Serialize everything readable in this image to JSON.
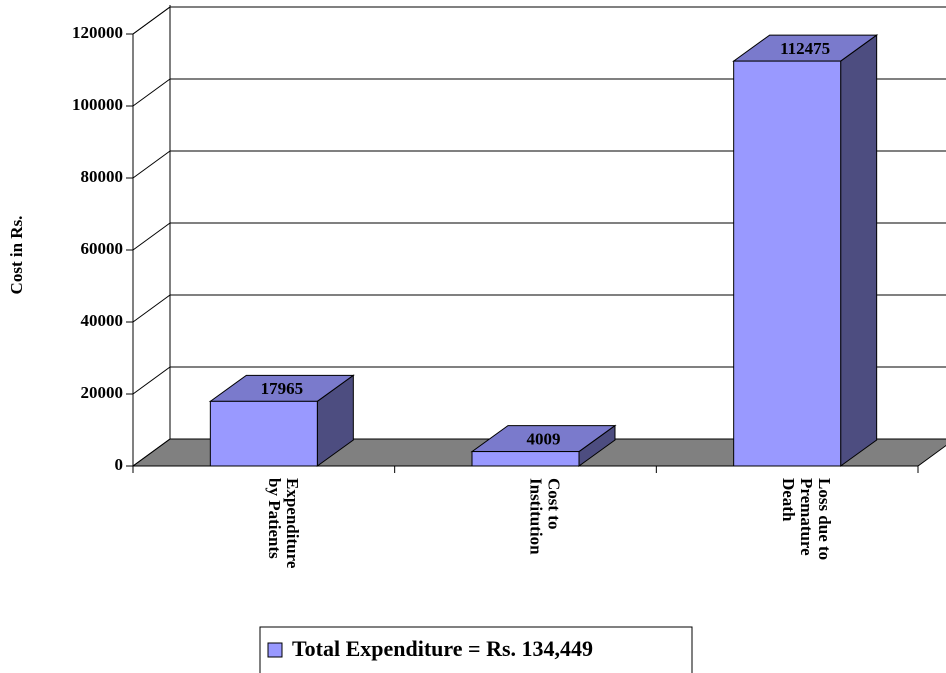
{
  "chart_data": {
    "type": "bar3d",
    "y_label": "Cost in Rs.",
    "categories": [
      [
        "Expenditure",
        "by Patients"
      ],
      [
        "Cost to",
        "Institution"
      ],
      [
        "Loss due to",
        "Premature",
        "Death"
      ]
    ],
    "series": [
      {
        "name": "Total Expenditure = Rs. 134,449",
        "color": "#9999ff",
        "values": [
          17965,
          4009,
          112475
        ]
      }
    ],
    "ylim": [
      0,
      120000
    ],
    "yticks": [
      0,
      20000,
      40000,
      60000,
      80000,
      100000,
      120000
    ],
    "grid": true,
    "legend": "bottom"
  }
}
